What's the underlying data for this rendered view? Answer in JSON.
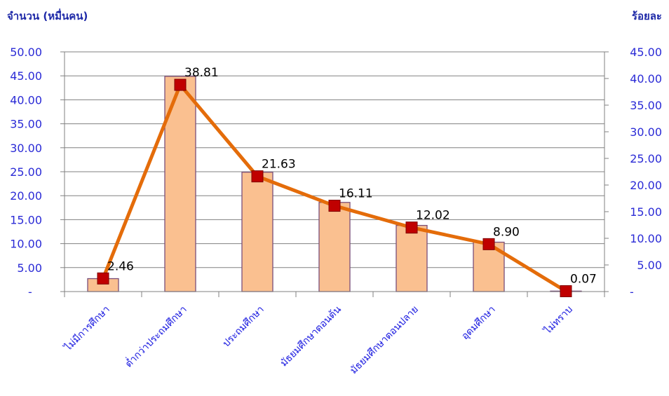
{
  "chart_data": {
    "type": "bar",
    "left_axis_title": "จำนวน (หมื่นคน)",
    "right_axis_title": "ร้อยละ",
    "categories": [
      "ไม่มีการศึกษา",
      "ต่ำกว่าประถมศึกษา",
      "ประถมศึกษา",
      "มัธยมศึกษาตอนต้น",
      "มัธยมศึกษาตอนปลาย",
      "อุดมศึกษา",
      "ไม่ทราบ"
    ],
    "series": [
      {
        "type": "bar",
        "axis": "left",
        "values": [
          2.7,
          44.9,
          24.9,
          18.6,
          13.8,
          10.3,
          0.1
        ]
      },
      {
        "type": "line",
        "axis": "right",
        "values": [
          2.46,
          38.81,
          21.63,
          16.11,
          12.02,
          8.9,
          0.07
        ]
      }
    ],
    "data_labels": [
      "2.46",
      "38.81",
      "21.63",
      "16.11",
      "12.02",
      "8.90",
      "0.07"
    ],
    "left_ylim": [
      0,
      50
    ],
    "left_ticks": [
      "-",
      "5.00",
      "10.00",
      "15.00",
      "20.00",
      "25.00",
      "30.00",
      "35.00",
      "40.00",
      "45.00",
      "50.00"
    ],
    "right_ylim": [
      0,
      45
    ],
    "right_ticks": [
      "-",
      "5.00",
      "10.00",
      "15.00",
      "20.00",
      "25.00",
      "30.00",
      "35.00",
      "40.00",
      "45.00"
    ],
    "grid": true,
    "colors": {
      "bar_fill": "#FAC090",
      "bar_stroke": "#7A4E7A",
      "line": "#E46C0A",
      "marker": "#C00000",
      "grid": "#808080",
      "tick_text": "#2B2BD6",
      "title_text": "#1F2AA8"
    }
  }
}
